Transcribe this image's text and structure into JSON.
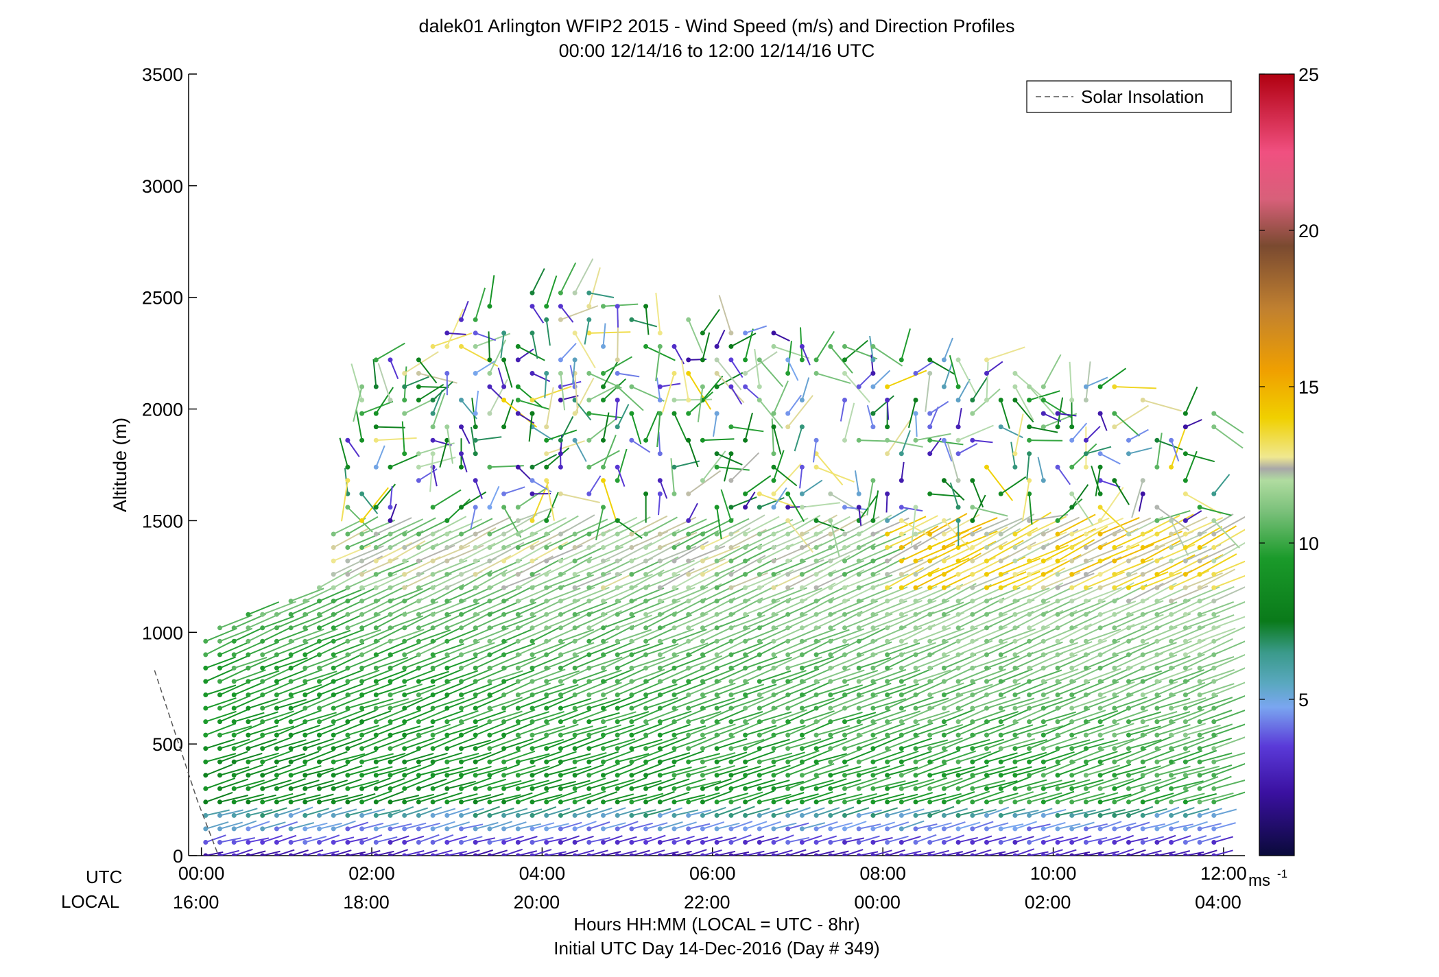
{
  "chart_data": {
    "type": "vector-profile",
    "title": "dalek01 Arlington WFIP2 2015 - Wind Speed (m/s) and Direction Profiles",
    "subtitle": "00:00 12/14/16 to 12:00 12/14/16  UTC",
    "ylabel": "Altitude (m)",
    "xlabel": "Hours HH:MM  (LOCAL = UTC - 8hr)",
    "xlabel2": "Initial UTC Day 14-Dec-2016 (Day # 349)",
    "ylim": [
      0,
      3500
    ],
    "yticks": [
      0,
      500,
      1000,
      1500,
      2000,
      2500,
      3000,
      3500
    ],
    "xlim_hours": [
      -0.15,
      12.25
    ],
    "utc_row_label": "UTC",
    "local_row_label": "LOCAL",
    "utc_ticks": [
      "00:00",
      "02:00",
      "04:00",
      "06:00",
      "08:00",
      "10:00",
      "12:00"
    ],
    "local_ticks": [
      "16:00",
      "18:00",
      "20:00",
      "22:00",
      "00:00",
      "02:00",
      "04:00"
    ],
    "tick_hours": [
      0,
      2,
      4,
      6,
      8,
      10,
      12
    ],
    "legend": {
      "label": "Solar Insolation",
      "placement": "top-right"
    },
    "solar_insolation": {
      "x_hours": [
        -0.55,
        -0.05,
        0.2
      ],
      "y": [
        830,
        250,
        0
      ]
    },
    "colorbar": {
      "unit": "ms",
      "unit_sup": "-1",
      "range": [
        0,
        25
      ],
      "ticks": [
        5,
        10,
        15,
        20,
        25
      ]
    },
    "profiles": {
      "time_step_hours": 0.1667,
      "gate_spacing_m": 60,
      "max_altitude_by_hour": [
        [
          0,
          990
        ],
        [
          1.4,
          1220
        ],
        [
          1.8,
          2200
        ],
        [
          4,
          2600
        ],
        [
          6,
          2380
        ],
        [
          9,
          2250
        ],
        [
          12,
          2000
        ]
      ],
      "speed_regimes": [
        {
          "altitude_range_m": [
            0,
            200
          ],
          "speed_ms": [
            2,
            5
          ]
        },
        {
          "altitude_range_m": [
            200,
            1200
          ],
          "speed_ms": [
            7,
            11
          ]
        },
        {
          "altitude_range_m": [
            1200,
            1450
          ],
          "speed_ms": [
            11,
            15
          ]
        },
        {
          "altitude_range_m": [
            1450,
            2600
          ],
          "speed_ms": [
            2,
            18
          ]
        }
      ]
    }
  }
}
